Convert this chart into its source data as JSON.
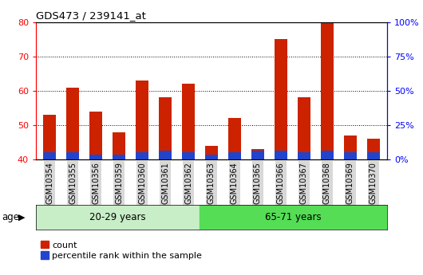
{
  "title": "GDS473 / 239141_at",
  "categories": [
    "GSM10354",
    "GSM10355",
    "GSM10356",
    "GSM10359",
    "GSM10360",
    "GSM10361",
    "GSM10362",
    "GSM10363",
    "GSM10364",
    "GSM10365",
    "GSM10366",
    "GSM10367",
    "GSM10368",
    "GSM10369",
    "GSM10370"
  ],
  "count_values": [
    53,
    61,
    54,
    48,
    63,
    58,
    62,
    44,
    52,
    43,
    75,
    58,
    80,
    47,
    46
  ],
  "percentile_values": [
    2.0,
    2.0,
    1.5,
    1.5,
    2.0,
    2.5,
    2.0,
    1.5,
    2.0,
    2.5,
    2.5,
    2.0,
    2.5,
    2.0,
    2.0
  ],
  "ymin": 40,
  "ymax": 80,
  "yleft_ticks": [
    40,
    50,
    60,
    70,
    80
  ],
  "yright_ticks": [
    0,
    25,
    50,
    75,
    100
  ],
  "bar_color_red": "#cc2200",
  "bar_color_blue": "#2244cc",
  "group1_label": "20-29 years",
  "group2_label": "65-71 years",
  "group1_count": 7,
  "group2_count": 8,
  "group_bg_color1": "#c8eec8",
  "group_bg_color2": "#55dd55",
  "age_label": "age",
  "legend_count": "count",
  "legend_pct": "percentile rank within the sample",
  "tick_label_bg": "#d8d8d8",
  "bar_width": 0.55
}
